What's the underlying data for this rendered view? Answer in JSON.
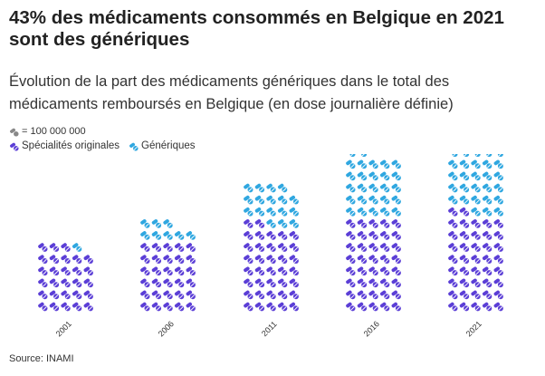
{
  "title": "43% des médicaments consommés en Belgique en 2021 sont des génériques",
  "subtitle": "Évolution de la part des médicaments génériques dans le total des médicaments remboursés en Belgique (en dose journalière définie)",
  "unit_label": "= 100 000 000",
  "source": "Source: INAMI",
  "colors": {
    "originales": "#5b3ed6",
    "generiques": "#2fa7e0"
  },
  "icon": "pills-icon",
  "chart_data": {
    "type": "pictogram",
    "unit_value": 100000000,
    "categories": [
      "2001",
      "2006",
      "2011",
      "2016",
      "2021"
    ],
    "series": [
      {
        "name": "Spécialités originales",
        "values": [
          28,
          30,
          37,
          40,
          42
        ]
      },
      {
        "name": "Génériques",
        "values": [
          1,
          8,
          17,
          27,
          32
        ]
      }
    ],
    "legend_position": "top-left"
  }
}
